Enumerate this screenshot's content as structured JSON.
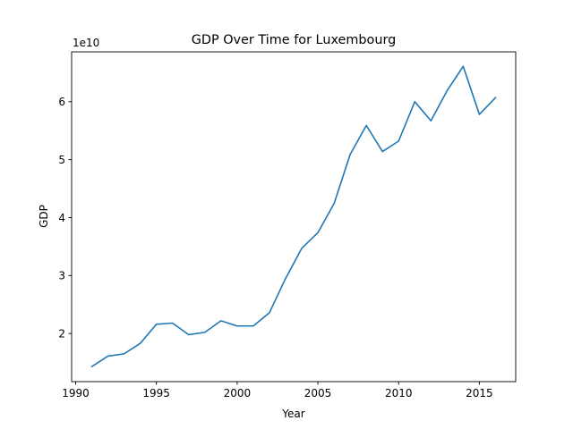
{
  "chart_data": {
    "type": "line",
    "title": "GDP Over Time for Luxembourg",
    "xlabel": "Year",
    "ylabel": "GDP",
    "y_offset_label": "1e10",
    "y_scale": 10000000000,
    "xlim": [
      1989.75,
      2017.25
    ],
    "ylim": [
      1.17,
      6.86
    ],
    "xticks": [
      1990,
      1995,
      2000,
      2005,
      2010,
      2015
    ],
    "yticks": [
      2,
      3,
      4,
      5,
      6
    ],
    "grid": false,
    "line_color": "#1f77b4",
    "series": [
      {
        "x": [
          1991,
          1992,
          1993,
          1994,
          1995,
          1996,
          1997,
          1998,
          1999,
          2000,
          2001,
          2002,
          2003,
          2004,
          2005,
          2006,
          2007,
          2008,
          2009,
          2010,
          2011,
          2012,
          2013,
          2014,
          2015,
          2016
        ],
        "y": [
          1.43,
          1.61,
          1.65,
          1.83,
          2.16,
          2.18,
          1.98,
          2.02,
          2.22,
          2.13,
          2.13,
          2.36,
          2.95,
          3.47,
          3.74,
          4.24,
          5.09,
          5.59,
          5.14,
          5.32,
          6.0,
          5.67,
          6.19,
          6.61,
          5.78,
          6.07
        ]
      }
    ]
  }
}
